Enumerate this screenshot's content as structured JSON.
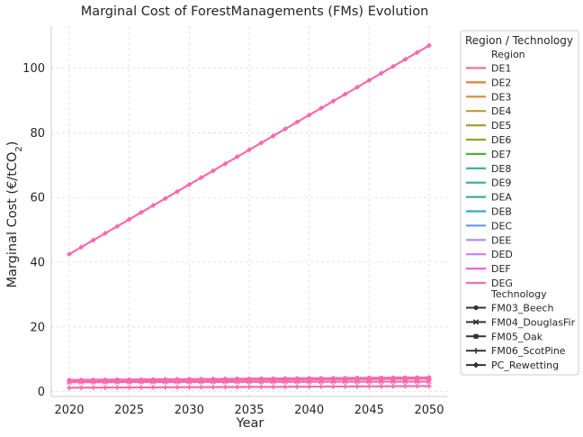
{
  "chart_data": {
    "type": "line",
    "title": "Marginal Cost of ForestManagements (FMs) Evolution",
    "xlabel": "Year",
    "ylabel": "Marginal Cost (€/tCO",
    "ylabel_sub": "2",
    "ylabel_suffix": ")",
    "xlim": [
      2018.5,
      2051.5
    ],
    "ylim": [
      -1.5,
      113
    ],
    "xticks": [
      2020,
      2025,
      2030,
      2035,
      2040,
      2045,
      2050
    ],
    "yticks": [
      0,
      20,
      40,
      60,
      80,
      100
    ],
    "grid": true,
    "legend": {
      "placement": "outside-right",
      "title": "Region / Technology",
      "region_header": "Region",
      "technology_header": "Technology",
      "regions": [
        {
          "name": "DE1",
          "color": "#f77189"
        },
        {
          "name": "DE2",
          "color": "#f37932"
        },
        {
          "name": "DE3",
          "color": "#d58c32"
        },
        {
          "name": "DE4",
          "color": "#bb9832"
        },
        {
          "name": "DE5",
          "color": "#a4a031"
        },
        {
          "name": "DE6",
          "color": "#88a931"
        },
        {
          "name": "DE7",
          "color": "#50b131"
        },
        {
          "name": "DE8",
          "color": "#34af86"
        },
        {
          "name": "DE9",
          "color": "#35ac9c"
        },
        {
          "name": "DEA",
          "color": "#36ada4"
        },
        {
          "name": "DEB",
          "color": "#38a8c5"
        },
        {
          "name": "DEC",
          "color": "#6e9bf4"
        },
        {
          "name": "DEE",
          "color": "#a48cf4"
        },
        {
          "name": "DED",
          "color": "#cc7af4"
        },
        {
          "name": "DEF",
          "color": "#f45cf2"
        },
        {
          "name": "DEG",
          "color": "#f66bad"
        }
      ],
      "technologies": [
        {
          "name": "FM03_Beech",
          "marker": "circle"
        },
        {
          "name": "FM04_DouglasFir",
          "marker": "x"
        },
        {
          "name": "FM05_Oak",
          "marker": "square"
        },
        {
          "name": "FM06_ScotPine",
          "marker": "plus"
        },
        {
          "name": "PC_Rewetting",
          "marker": "diamond"
        }
      ]
    },
    "series": [
      {
        "name": "PC_Rewetting",
        "region": "DEG",
        "color": "#f66bad",
        "marker": "diamond",
        "start": 42.5,
        "end": 107.0
      },
      {
        "name": "FM03_Beech",
        "region": "DEG",
        "color": "#f66bad",
        "marker": "circle",
        "start": 3.6,
        "end": 4.4
      },
      {
        "name": "FM05_Oak",
        "region": "DEG",
        "color": "#f66bad",
        "marker": "square",
        "start": 3.2,
        "end": 4.0
      },
      {
        "name": "FM04_DouglasFir",
        "region": "DEG",
        "color": "#f66bad",
        "marker": "x",
        "start": 2.9,
        "end": 3.1
      },
      {
        "name": "FM06_ScotPine",
        "region": "DEG",
        "color": "#f66bad",
        "marker": "plus",
        "start": 1.2,
        "end": 1.7
      }
    ],
    "x_start": 2020,
    "x_end": 2050,
    "x_step": 1
  }
}
